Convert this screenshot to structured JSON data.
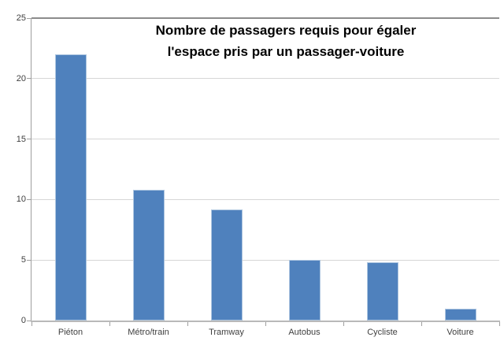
{
  "chart_data": {
    "type": "bar",
    "title": "Nombre de passagers requis pour égaler l'espace pris par un passager-voiture",
    "title_lines": [
      "Nombre de passagers requis pour égaler",
      "l'espace pris par un passager-voiture"
    ],
    "categories": [
      "Piéton",
      "Métro/train",
      "Tramway",
      "Autobus",
      "Cycliste",
      "Voiture"
    ],
    "values": [
      22,
      10.8,
      9.2,
      5,
      4.8,
      1
    ],
    "xlabel": "",
    "ylabel": "",
    "ylim": [
      0,
      25
    ],
    "yticks": [
      0,
      5,
      10,
      15,
      20,
      25
    ],
    "grid": true,
    "legend_position": "none",
    "colors": {
      "bar_fill": "#4f81bd",
      "bar_edge": "#aec6e0",
      "gridline": "#d6d6d6",
      "top_gridline": "#8c8c8c",
      "axis_line": "#9f9f9f",
      "label_text": "#3f3f3f",
      "title_text": "#000000",
      "background": "#ffffff"
    }
  }
}
